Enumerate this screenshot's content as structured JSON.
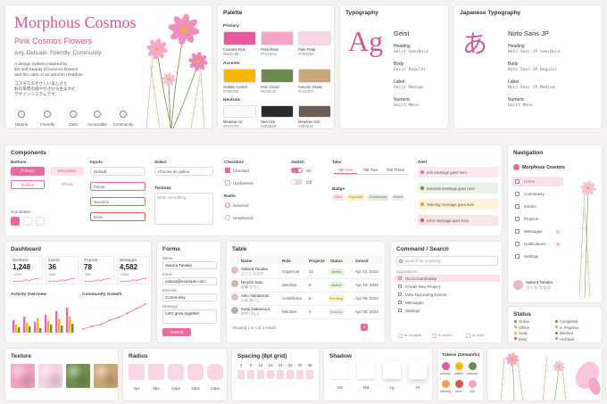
{
  "hero": {
    "title": "Morphous Cosmos",
    "subtitle": "Pink Cosmos Flowers",
    "tagline": "Airy. Delicate. Friendly. Community.",
    "description": [
      "A design system inspired by",
      "the soft beauty of cosmos flowers",
      "and the calm of an autumn meadow."
    ],
    "description_ja": [
      "コスモスのやさしい美しさと",
      "秋の草原の穏やかさから生まれた",
      "デザインシステムです。"
    ],
    "values": [
      "Natural",
      "Friendly",
      "Calm",
      "Accessible",
      "Community"
    ]
  },
  "palette": {
    "title": "Palette",
    "groups": [
      {
        "name": "Primary",
        "swatches": [
          {
            "name": "Cosmos Pink",
            "hex": "#E85A9B"
          },
          {
            "name": "Petal Rose",
            "hex": "#F3A6C8"
          },
          {
            "name": "Pale Petal",
            "hex": "#F9D6E6"
          }
        ]
      },
      {
        "name": "Accents",
        "swatches": [
          {
            "name": "Golden Center",
            "hex": "#F5B700"
          },
          {
            "name": "Fern Green",
            "hex": "#6A8A4F"
          },
          {
            "name": "Autumn Grass",
            "hex": "#C8A87A"
          }
        ]
      },
      {
        "name": "Neutrals",
        "swatches": [
          {
            "name": "Meadow Air",
            "hex": "#FAFAF8"
          },
          {
            "name": "Seed Ink",
            "hex": "#2B2B2B"
          },
          {
            "name": "Meadow Soil",
            "hex": "#6B5E52"
          }
        ]
      }
    ]
  },
  "typography": {
    "title": "Typography",
    "sample": "Ag",
    "family": "Geist",
    "styles": [
      {
        "role": "Heading",
        "font": "Geist SemiBold"
      },
      {
        "role": "Body",
        "font": "Geist Regular"
      },
      {
        "role": "Label",
        "font": "Geist Medium"
      },
      {
        "role": "Numeric",
        "font": "Geist Mono"
      }
    ]
  },
  "japanese_typography": {
    "title": "Japanese Typography",
    "sample": "あ",
    "family": "Noto Sans JP",
    "styles": [
      {
        "role": "Heading",
        "font": "Noto Sans JP SemiBold"
      },
      {
        "role": "Body",
        "font": "Noto Sans JP Regular"
      },
      {
        "role": "Label",
        "font": "Noto Sans JP Medium"
      },
      {
        "role": "Numeric",
        "font": "Geist Mono"
      }
    ]
  },
  "components": {
    "title": "Components",
    "buttons": {
      "label": "Buttons",
      "items": [
        "Primary",
        "Secondary",
        "Outline",
        "Ghost"
      ],
      "icon_label": "Icon Button"
    },
    "inputs": {
      "label": "Inputs",
      "items": [
        "Default",
        "Focus",
        "Success",
        "Error"
      ]
    },
    "select": {
      "label": "Select",
      "placeholder": "Choose an option"
    },
    "textarea": {
      "label": "Textarea",
      "placeholder": "Write something..."
    },
    "checkbox": {
      "label": "Checkbox",
      "items": [
        "Checked",
        "Unchecked"
      ]
    },
    "radio": {
      "label": "Radio",
      "items": [
        "Selected",
        "Unselected"
      ]
    },
    "switch": {
      "label": "Switch",
      "items": [
        "On",
        "Off"
      ]
    },
    "tabs": {
      "label": "Tabs",
      "items": [
        "Tab One",
        "Tab Two",
        "Tab Three"
      ]
    },
    "badge": {
      "label": "Badge",
      "items": [
        "New",
        "Essential",
        "Community",
        "Muted"
      ]
    },
    "alert": {
      "label": "Alert",
      "items": [
        "Info message goes here",
        "Success message goes here",
        "Warning message goes here",
        "Error message goes here"
      ]
    }
  },
  "navigation": {
    "title": "Navigation",
    "brand": "Morphous Cosmos",
    "items": [
      {
        "label": "Home"
      },
      {
        "label": "Community"
      },
      {
        "label": "Events"
      },
      {
        "label": "Projects"
      },
      {
        "label": "Messages",
        "badge": "3"
      },
      {
        "label": "Notifications",
        "badge": "8"
      },
      {
        "label": "Settings"
      }
    ],
    "user": {
      "name": "Sakura Tanaka",
      "name_ja": "さくら たなか"
    }
  },
  "status": {
    "title": "Status",
    "items": [
      "Online",
      "Offline",
      "Away",
      "Busy",
      "Completed",
      "In Progress",
      "Blocked",
      "Archived"
    ]
  },
  "dashboard": {
    "title": "Dashboard",
    "stats": [
      {
        "label": "Members",
        "value": "1,248",
        "change": "+12%"
      },
      {
        "label": "Events",
        "value": "36",
        "change": "+8%"
      },
      {
        "label": "Projects",
        "value": "78",
        "change": "+5%"
      },
      {
        "label": "Messages",
        "value": "4,582",
        "change": "+18%"
      }
    ],
    "charts": [
      "Activity Overview",
      "Community Growth"
    ]
  },
  "forms": {
    "title": "Forms",
    "fields": [
      {
        "label": "Name",
        "value": "Sakura Tanaka"
      },
      {
        "label": "Email",
        "value": "sakura@example.com"
      },
      {
        "label": "Interests",
        "value": "Community"
      },
      {
        "label": "Message",
        "value": "Let's grow together"
      }
    ],
    "submit": "Submit"
  },
  "table": {
    "title": "Table",
    "columns": [
      "Name",
      "Role",
      "Projects",
      "Status",
      "Joined"
    ],
    "rows": [
      {
        "name": "Sakura Tanaka",
        "name_ja": "さくら たなか",
        "role": "Organizer",
        "projects": 12,
        "status": "Active",
        "joined": "Apr 12, 2024"
      },
      {
        "name": "Hiroshi Sato",
        "name_ja": "佐藤 ひろし",
        "role": "Member",
        "projects": 8,
        "status": "Active",
        "joined": "Apr 10, 2024"
      },
      {
        "name": "Aiko Yamamoto",
        "name_ja": "山本 あいこ",
        "role": "Contributor",
        "projects": 5,
        "status": "Pending",
        "joined": "Apr 08, 2024"
      },
      {
        "name": "Kenji Nakamura",
        "name_ja": "中村 けんじ",
        "role": "Member",
        "projects": 3,
        "status": "Inactive",
        "joined": "Apr 05, 2024"
      }
    ],
    "footer": "Showing 1 to 4 of 4 results",
    "page": 1
  },
  "command": {
    "title": "Command / Search",
    "placeholder": "Search for anything...",
    "section": "Suggestions",
    "items": [
      "Go to Community",
      "Create New Project",
      "View Upcoming Events",
      "Messages",
      "Settings"
    ],
    "hints": [
      "to navigate",
      "to select",
      "to close"
    ]
  },
  "texture": {
    "title": "Texture"
  },
  "radius": {
    "title": "Radius",
    "items": [
      "4px",
      "8px",
      "12px",
      "16px",
      "24px"
    ]
  },
  "spacing": {
    "title": "Spacing (8pt grid)",
    "items": [
      4,
      8,
      12,
      16,
      24,
      32,
      40,
      48
    ]
  },
  "shadow": {
    "title": "Shadow",
    "items": [
      "Sm",
      "Md",
      "Lg",
      "Xl"
    ]
  },
  "tokens": {
    "title": "Tokens (Semantic)",
    "items": [
      {
        "name": "primary",
        "color": "#E85A9B"
      },
      {
        "name": "accent",
        "color": "#F5B700"
      },
      {
        "name": "success",
        "color": "#6A8A4F"
      },
      {
        "name": "warning",
        "color": "#F0A24B"
      },
      {
        "name": "error",
        "color": "#D9534F"
      },
      {
        "name": "info",
        "color": "#F3A6C8"
      }
    ]
  }
}
